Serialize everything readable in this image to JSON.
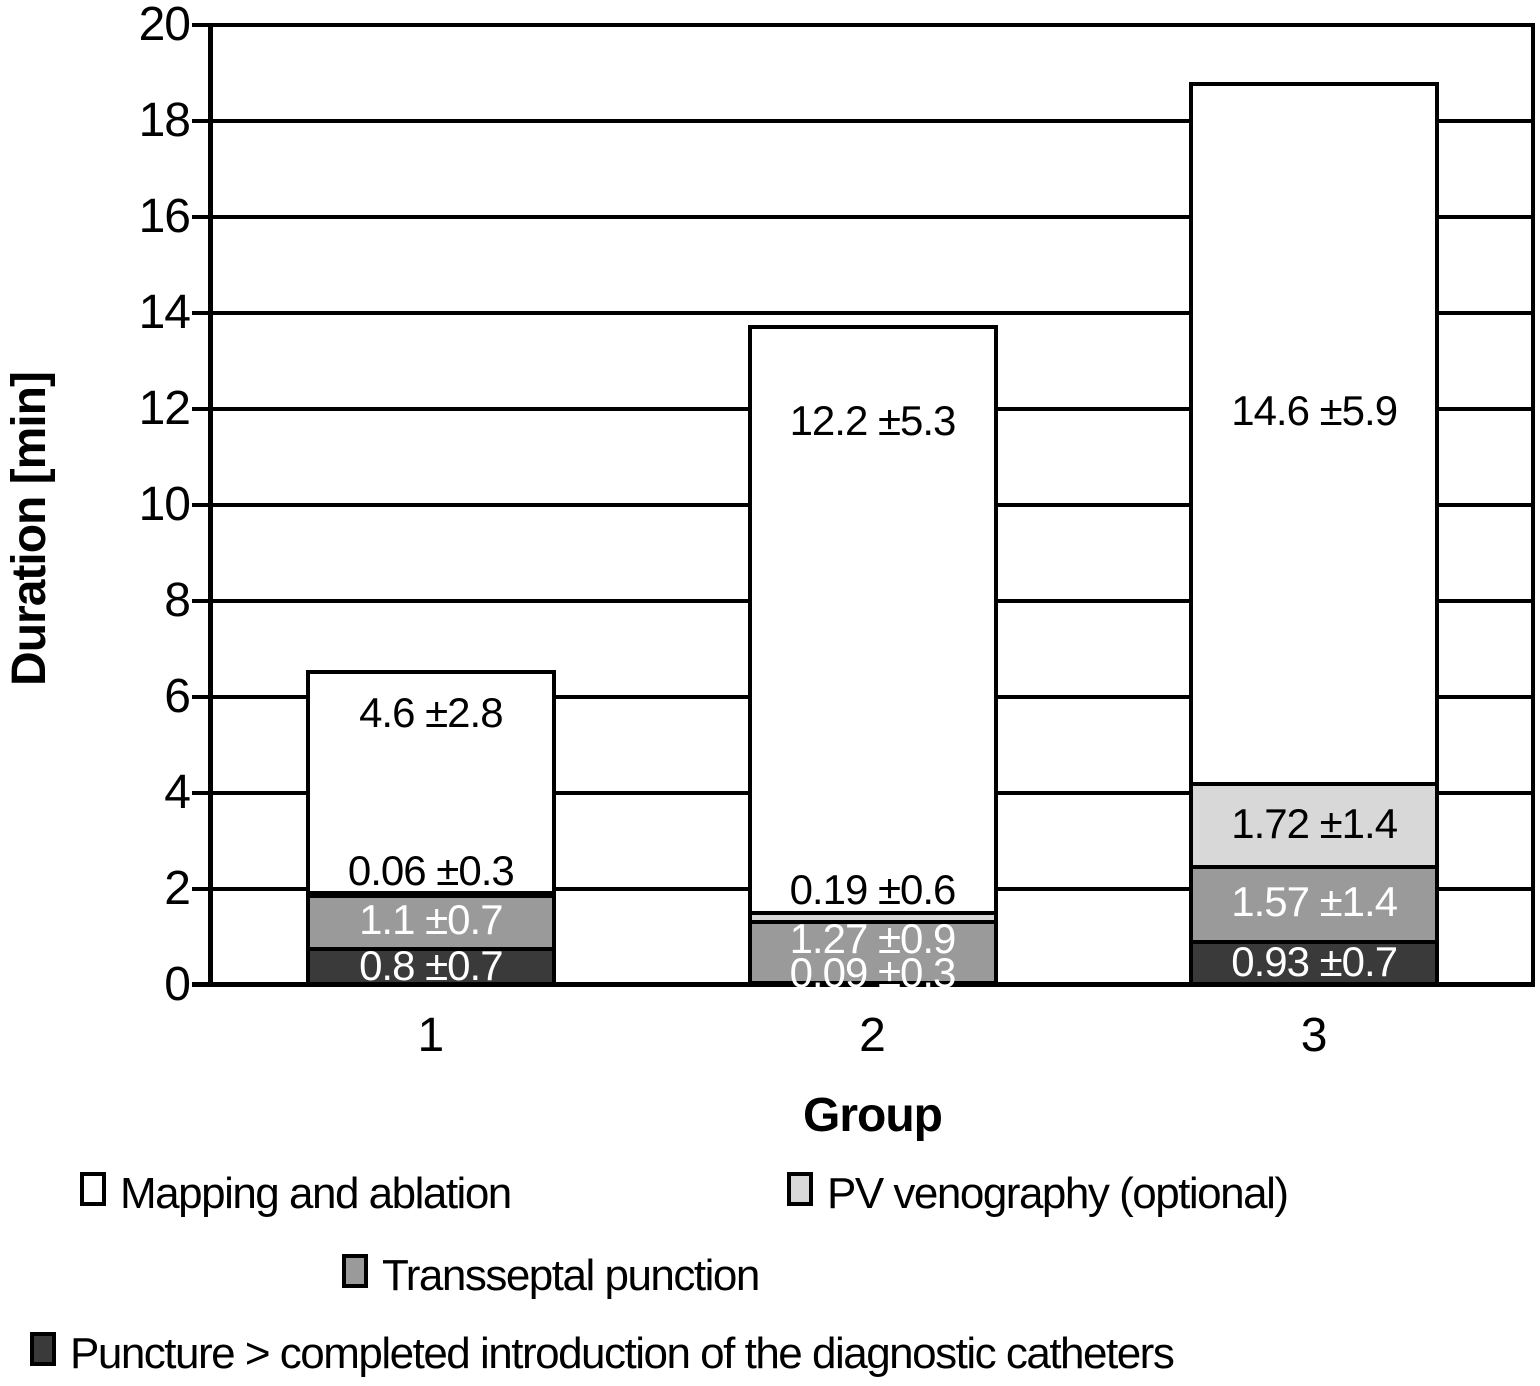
{
  "chart_data": {
    "type": "bar",
    "stacked": true,
    "title": "",
    "xlabel": "Group",
    "ylabel": "Duration [min]",
    "ylim": [
      0,
      20
    ],
    "ytick_step": 2,
    "yticks": [
      0,
      2,
      4,
      6,
      8,
      10,
      12,
      14,
      16,
      18,
      20
    ],
    "categories": [
      "1",
      "2",
      "3"
    ],
    "grid": "horizontal",
    "legend_position": "bottom",
    "series": [
      {
        "name": "Puncture > completed introduction of the diagnostic catheters",
        "fill": "#3a3a3a",
        "label_color": "#ffffff",
        "values": [
          0.8,
          0.09,
          0.93
        ],
        "labels": [
          "0.8 ±0.7",
          "0.09 ±0.3",
          "0.93 ±0.7"
        ],
        "label_y": [
          0.4,
          0.25,
          0.47
        ]
      },
      {
        "name": "Transseptal punction",
        "fill": "#9a9a9a",
        "label_color": "#ffffff",
        "values": [
          1.1,
          1.27,
          1.57
        ],
        "labels": [
          "1.1 ±0.7",
          "1.27 ±0.9",
          "1.57 ±1.4"
        ],
        "label_y": [
          1.35,
          0.95,
          1.72
        ]
      },
      {
        "name": "PV venography (optional)",
        "fill": "#d8d8d8",
        "label_color": "#000000",
        "values": [
          0.06,
          0.19,
          1.72
        ],
        "labels": [
          "0.06 ±0.3",
          "0.19 ±0.6",
          "1.72 ±1.4"
        ],
        "label_y": [
          2.38,
          1.97,
          3.36
        ]
      },
      {
        "name": "Mapping and ablation",
        "fill": "#ffffff",
        "label_color": "#000000",
        "values": [
          4.6,
          12.2,
          14.6
        ],
        "labels": [
          "4.6 ±2.8",
          "12.2 ±5.3",
          "14.6 ±5.9"
        ],
        "label_y": [
          5.66,
          11.75,
          11.95
        ]
      }
    ],
    "legend": [
      {
        "label": "Mapping and ablation",
        "fill": "#ffffff"
      },
      {
        "label": "PV venography (optional)",
        "fill": "#d8d8d8"
      },
      {
        "label": "Transseptal punction",
        "fill": "#9a9a9a"
      },
      {
        "label": "Puncture > completed introduction of the diagnostic catheters",
        "fill": "#3a3a3a"
      }
    ]
  }
}
